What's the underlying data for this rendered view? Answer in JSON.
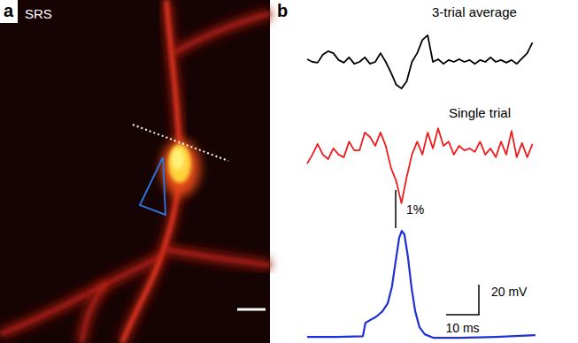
{
  "panels": {
    "a": {
      "label": "a",
      "image_label": "SRS"
    },
    "b": {
      "label": "b"
    }
  },
  "chart_data": [
    {
      "type": "line",
      "title": "3-trial average",
      "x": [
        0,
        1.6,
        3.2,
        4.8,
        6.4,
        8,
        9.6,
        11.2,
        12.8,
        14.4,
        16,
        17.6,
        19.2,
        20.8,
        22.4,
        24,
        25.6,
        27.2,
        28.8,
        30.4,
        32,
        33.6,
        35.2,
        36.8,
        38.4,
        40,
        41.6,
        43.2,
        44.8,
        46.4,
        48,
        49.6,
        51.2,
        52.8,
        54.4,
        56,
        57.6,
        59.2,
        60.8,
        62.4,
        64,
        65.6,
        67.2,
        68.8
      ],
      "series": [
        {
          "color": "#000000",
          "values": [
            0,
            -0.07,
            -0.09,
            0.12,
            0.21,
            0.16,
            -0.02,
            -0.09,
            0.05,
            -0.12,
            -0.07,
            0.05,
            -0.12,
            -0.07,
            0.16,
            -0.07,
            -0.35,
            -0.67,
            -0.77,
            -0.58,
            -0.07,
            0.16,
            0.51,
            0.63,
            -0.07,
            0,
            -0.12,
            -0.02,
            -0.07,
            0,
            -0.07,
            -0.02,
            -0.12,
            -0.02,
            -0.07,
            0.05,
            -0.07,
            -0.02,
            -0.09,
            -0.02,
            -0.12,
            0.02,
            0.16,
            0.44
          ]
        }
      ],
      "xlim": [
        0,
        69.7
      ],
      "ylim": [
        -1,
        0.75
      ],
      "tick_labels": false
    },
    {
      "type": "line",
      "title": "Single trial",
      "x": [
        0,
        1.6,
        3.2,
        4.8,
        6.4,
        8,
        9.6,
        11.2,
        12.8,
        14.4,
        16,
        17.6,
        19.2,
        20.8,
        22.4,
        24,
        25.6,
        27.2,
        28.8,
        30.4,
        32,
        33.6,
        35.2,
        36.8,
        38.4,
        40,
        41.6,
        43.2,
        44.8,
        46.4,
        48,
        49.6,
        51.2,
        52.8,
        54.4,
        56,
        57.6,
        59.2,
        60.8,
        62.4,
        64,
        65.6,
        67.2,
        68.8
      ],
      "series": [
        {
          "color": "#ee1c1c",
          "values": [
            -0.05,
            0.19,
            0.47,
            0.19,
            0.07,
            0.35,
            0.19,
            0.12,
            0.53,
            0.3,
            0.3,
            0.77,
            0.65,
            0.42,
            0.77,
            0.42,
            -0.16,
            -0.51,
            -1.09,
            -0.4,
            0.19,
            0.53,
            0.19,
            0.77,
            0.35,
            0.88,
            0.42,
            0.53,
            0.19,
            0.42,
            0.3,
            0.35,
            0.26,
            0.53,
            0.19,
            0.35,
            0.12,
            0.53,
            0.19,
            0.81,
            0.12,
            0.49,
            0.12,
            0.47
          ]
        }
      ],
      "xlim": [
        0,
        69.7
      ],
      "ylim": [
        -1.25,
        1.0
      ],
      "tick_labels": false,
      "y_scale_bar": {
        "value": 1,
        "label": "1%"
      }
    },
    {
      "type": "line",
      "x": [
        0,
        8.9,
        17,
        17.8,
        19.2,
        21.1,
        23,
        24.6,
        25.9,
        27,
        28.1,
        28.9,
        29.7,
        30.8,
        31.9,
        33,
        34.3,
        35.9,
        38.6,
        46.8,
        57.6,
        69.7
      ],
      "series": [
        {
          "color": "#1f2fd6",
          "values": [
            0,
            0,
            0.5,
            9.4,
            11.2,
            13.5,
            17.1,
            22.4,
            33.5,
            50,
            65.9,
            70.6,
            68.2,
            52.9,
            32.4,
            17.1,
            6.5,
            1.8,
            -0.6,
            -0.6,
            0,
            1.2
          ]
        }
      ],
      "xlim": [
        0,
        69.7
      ],
      "ylim": [
        -4,
        75
      ],
      "tick_labels": false,
      "y_scale_bar": {
        "value": 20,
        "label": "20 mV"
      },
      "x_scale_bar": {
        "value": 10,
        "label": "10 ms"
      }
    }
  ]
}
